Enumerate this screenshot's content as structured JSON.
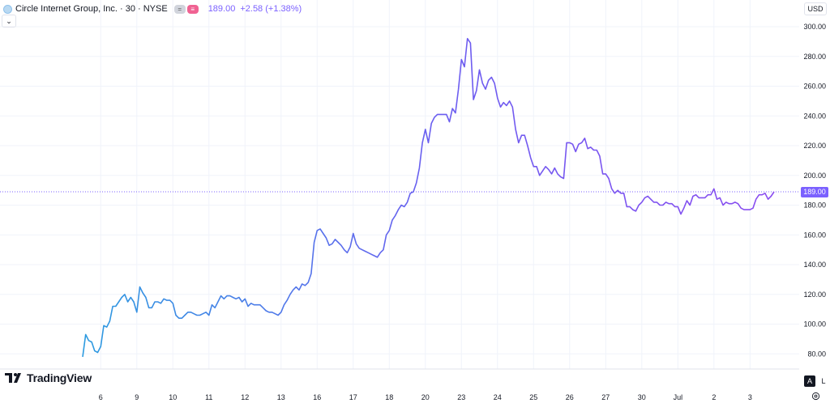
{
  "legend": {
    "symbol_text": "Circle Internet Group, Inc. · 30 · NYSE",
    "pill_gray": "=",
    "pill_pink": "≡",
    "price": "189.00",
    "change": "+2.58 (+1.38%)"
  },
  "header": {
    "currency": "USD",
    "collapse": "⌄"
  },
  "last_price_label": "189.00",
  "branding": {
    "name": "TradingView"
  },
  "scale_buttons": {
    "auto": "A",
    "log": "L"
  },
  "colors": {
    "line_start": "#2c9be0",
    "line_end": "#9d3ff2",
    "last_price": "#7b61ff",
    "grid": "#f0f3fa"
  },
  "icons": [
    "symbol-logo-icon",
    "chevron-down-icon",
    "tradingview-logo-icon",
    "settings-icon"
  ],
  "chart_data": {
    "type": "line",
    "title": "Circle Internet Group, Inc. · 30 · NYSE",
    "y_ticks": [
      80,
      100,
      120,
      140,
      160,
      180,
      200,
      220,
      240,
      260,
      280,
      300
    ],
    "ylim": [
      72,
      306
    ],
    "x_tick_labels": [
      "6",
      "9",
      "10",
      "11",
      "12",
      "13",
      "16",
      "17",
      "18",
      "20",
      "23",
      "24",
      "25",
      "26",
      "27",
      "30",
      "Jul",
      "2",
      "3"
    ],
    "x_tick_index": [
      6,
      18,
      30,
      42,
      54,
      66,
      78,
      90,
      102,
      114,
      126,
      138,
      150,
      162,
      174,
      186,
      198,
      210,
      222
    ],
    "grid": true,
    "last_price": 189.0,
    "series": [
      {
        "values": [
          78,
          93,
          89,
          88,
          82,
          81,
          85,
          99,
          98,
          102,
          112,
          112,
          115,
          118,
          120,
          115,
          118,
          115,
          108,
          125,
          121,
          118,
          111,
          111,
          115,
          115,
          114,
          117,
          116,
          116,
          114,
          106,
          104,
          104,
          106,
          108,
          108,
          107,
          106,
          106,
          107,
          108,
          106,
          113,
          111,
          115,
          119,
          117,
          119,
          119,
          118,
          117,
          118,
          115,
          117,
          112,
          114,
          113,
          113,
          113,
          111,
          109,
          108,
          108,
          107,
          106,
          108,
          113,
          116,
          120,
          123,
          125,
          123,
          127,
          126,
          128,
          134,
          155,
          163,
          164,
          161,
          158,
          153,
          154,
          157,
          155,
          153,
          150,
          148,
          152,
          161,
          154,
          151,
          150,
          149,
          148,
          147,
          146,
          145,
          148,
          150,
          160,
          163,
          170,
          173,
          177,
          180,
          179,
          182,
          188,
          189,
          195,
          205,
          222,
          231,
          222,
          235,
          239,
          241,
          241,
          241,
          241,
          236,
          245,
          242,
          258,
          278,
          273,
          292,
          289,
          251,
          257,
          271,
          262,
          258,
          264,
          266,
          262,
          252,
          246,
          249,
          247,
          250,
          246,
          231,
          222,
          227,
          227,
          220,
          212,
          206,
          206,
          200,
          203,
          206,
          204,
          201,
          205,
          201,
          199,
          198,
          222,
          222,
          221,
          216,
          221,
          222,
          225,
          218,
          219,
          217,
          217,
          213,
          201,
          201,
          198,
          191,
          188,
          190,
          188,
          188,
          179,
          179,
          177,
          176,
          180,
          182,
          185,
          186,
          184,
          182,
          182,
          180,
          180,
          182,
          181,
          181,
          179,
          179,
          174,
          178,
          183,
          180,
          186,
          187,
          185,
          185,
          185,
          187,
          187,
          191,
          184,
          185,
          180,
          182,
          181,
          181,
          182,
          181,
          178,
          177,
          177,
          177,
          178,
          184,
          187,
          187,
          188,
          184,
          186,
          189
        ]
      }
    ]
  }
}
